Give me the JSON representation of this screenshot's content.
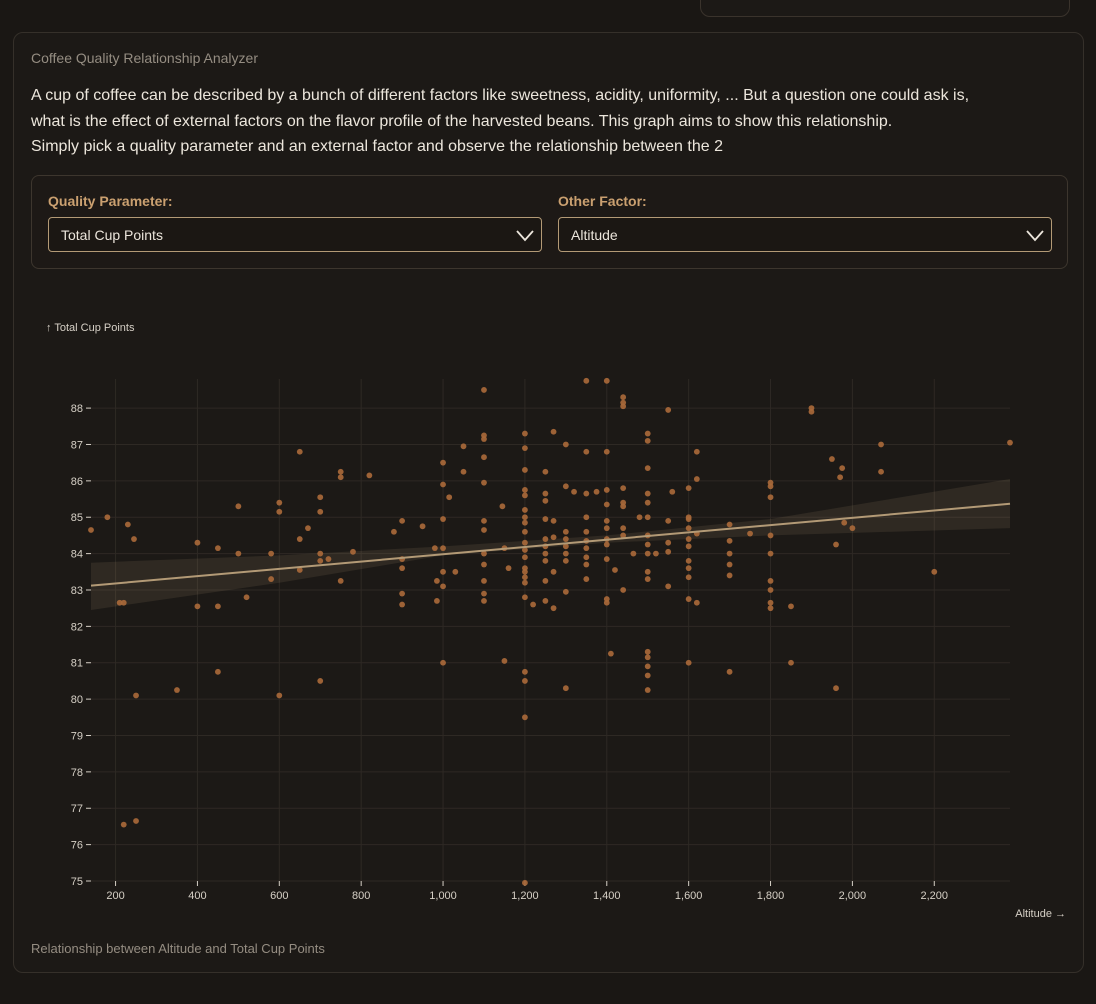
{
  "card": {
    "title": "Coffee Quality Relationship Analyzer",
    "description": [
      "A cup of coffee can be described by a bunch of different factors like sweetness, acidity, uniformity, ... But a question one could ask is,",
      "what is the effect of external factors on the flavor profile of the harvested beans. This graph aims to show this relationship.",
      "Simply pick a quality parameter and an external factor and observe the relationship between the 2"
    ],
    "caption": "Relationship between Altitude and Total Cup Points"
  },
  "controls": {
    "quality_label": "Quality Parameter:",
    "quality_value": "Total Cup Points",
    "factor_label": "Other Factor:",
    "factor_value": "Altitude"
  },
  "colors": {
    "point": "#a8683a",
    "trend": "#b39a76",
    "grid": "#2e2924",
    "axis_text": "#d6d0c6"
  },
  "chart_data": {
    "type": "scatter",
    "ylabel": "↑ Total Cup Points",
    "xlabel": "Altitude →",
    "xlim": [
      140,
      2385
    ],
    "ylim": [
      75,
      88.8
    ],
    "x_ticks": [
      200,
      400,
      600,
      800,
      1000,
      1200,
      1400,
      1600,
      1800,
      2000,
      2200
    ],
    "x_tick_labels": [
      "200",
      "400",
      "600",
      "800",
      "1,000",
      "1,200",
      "1,400",
      "1,600",
      "1,800",
      "2,000",
      "2,200"
    ],
    "y_ticks": [
      75,
      76,
      77,
      78,
      79,
      80,
      81,
      82,
      83,
      84,
      85,
      86,
      87,
      88
    ],
    "grid": true,
    "trend": {
      "x": [
        140,
        2385
      ],
      "y": [
        83.12,
        85.37
      ]
    },
    "band": {
      "x": [
        140,
        600,
        1000,
        1400,
        1800,
        2385
      ],
      "upper": [
        83.75,
        83.95,
        84.2,
        84.5,
        84.95,
        86.05
      ],
      "lower": [
        82.45,
        83.2,
        83.95,
        84.3,
        84.5,
        84.7
      ]
    },
    "points": [
      [
        140,
        84.65
      ],
      [
        180,
        85.0
      ],
      [
        210,
        82.65
      ],
      [
        220,
        82.65
      ],
      [
        230,
        84.8
      ],
      [
        245,
        84.4
      ],
      [
        250,
        80.1
      ],
      [
        350,
        80.25
      ],
      [
        400,
        84.3
      ],
      [
        400,
        82.55
      ],
      [
        450,
        84.15
      ],
      [
        450,
        82.55
      ],
      [
        450,
        80.75
      ],
      [
        500,
        85.3
      ],
      [
        500,
        84.0
      ],
      [
        520,
        82.8
      ],
      [
        580,
        84.0
      ],
      [
        580,
        83.3
      ],
      [
        600,
        85.4
      ],
      [
        600,
        85.15
      ],
      [
        600,
        80.1
      ],
      [
        650,
        86.8
      ],
      [
        650,
        84.4
      ],
      [
        650,
        83.55
      ],
      [
        670,
        84.7
      ],
      [
        700,
        85.55
      ],
      [
        700,
        85.15
      ],
      [
        700,
        84.0
      ],
      [
        700,
        83.8
      ],
      [
        700,
        80.5
      ],
      [
        720,
        83.85
      ],
      [
        750,
        86.25
      ],
      [
        750,
        86.1
      ],
      [
        750,
        83.25
      ],
      [
        780,
        84.05
      ],
      [
        820,
        86.15
      ],
      [
        880,
        84.6
      ],
      [
        900,
        84.9
      ],
      [
        900,
        83.85
      ],
      [
        900,
        83.6
      ],
      [
        900,
        82.9
      ],
      [
        900,
        82.6
      ],
      [
        950,
        84.75
      ],
      [
        980,
        84.15
      ],
      [
        985,
        83.25
      ],
      [
        985,
        82.7
      ],
      [
        1000,
        86.5
      ],
      [
        1000,
        85.9
      ],
      [
        1000,
        84.95
      ],
      [
        1000,
        84.15
      ],
      [
        1000,
        83.5
      ],
      [
        1000,
        83.1
      ],
      [
        1000,
        81.0
      ],
      [
        1015,
        85.55
      ],
      [
        1030,
        83.5
      ],
      [
        1050,
        86.95
      ],
      [
        1050,
        86.25
      ],
      [
        1100,
        88.5
      ],
      [
        1100,
        87.25
      ],
      [
        1100,
        87.15
      ],
      [
        1100,
        86.65
      ],
      [
        1100,
        85.95
      ],
      [
        1100,
        84.9
      ],
      [
        1100,
        84.65
      ],
      [
        1100,
        84.0
      ],
      [
        1100,
        83.7
      ],
      [
        1100,
        83.25
      ],
      [
        1100,
        82.9
      ],
      [
        1100,
        82.7
      ],
      [
        1145,
        85.3
      ],
      [
        1150,
        84.15
      ],
      [
        1150,
        81.05
      ],
      [
        1160,
        83.6
      ],
      [
        1200,
        87.3
      ],
      [
        1200,
        86.9
      ],
      [
        1200,
        86.3
      ],
      [
        1200,
        85.75
      ],
      [
        1200,
        85.6
      ],
      [
        1200,
        85.2
      ],
      [
        1200,
        85.0
      ],
      [
        1200,
        84.85
      ],
      [
        1200,
        84.6
      ],
      [
        1200,
        84.3
      ],
      [
        1200,
        84.1
      ],
      [
        1200,
        83.9
      ],
      [
        1200,
        83.6
      ],
      [
        1200,
        83.5
      ],
      [
        1200,
        83.35
      ],
      [
        1200,
        83.2
      ],
      [
        1200,
        82.8
      ],
      [
        1200,
        80.75
      ],
      [
        1200,
        80.5
      ],
      [
        1200,
        79.5
      ],
      [
        1200,
        74.95
      ],
      [
        1220,
        82.6
      ],
      [
        1250,
        86.25
      ],
      [
        1250,
        85.65
      ],
      [
        1250,
        85.45
      ],
      [
        1250,
        84.95
      ],
      [
        1250,
        84.4
      ],
      [
        1250,
        84.2
      ],
      [
        1250,
        84.0
      ],
      [
        1250,
        83.8
      ],
      [
        1250,
        83.25
      ],
      [
        1250,
        82.7
      ],
      [
        1270,
        87.35
      ],
      [
        1270,
        84.9
      ],
      [
        1270,
        84.45
      ],
      [
        1270,
        83.5
      ],
      [
        1270,
        82.5
      ],
      [
        1300,
        87.0
      ],
      [
        1300,
        85.85
      ],
      [
        1300,
        84.6
      ],
      [
        1300,
        84.4
      ],
      [
        1300,
        84.2
      ],
      [
        1300,
        84.0
      ],
      [
        1300,
        83.8
      ],
      [
        1300,
        82.95
      ],
      [
        1300,
        80.3
      ],
      [
        1320,
        85.7
      ],
      [
        1350,
        88.75
      ],
      [
        1350,
        86.8
      ],
      [
        1350,
        85.65
      ],
      [
        1350,
        85.0
      ],
      [
        1350,
        84.6
      ],
      [
        1350,
        84.35
      ],
      [
        1350,
        84.15
      ],
      [
        1350,
        83.9
      ],
      [
        1350,
        83.7
      ],
      [
        1350,
        83.3
      ],
      [
        1375,
        85.7
      ],
      [
        1400,
        88.75
      ],
      [
        1400,
        86.8
      ],
      [
        1400,
        85.75
      ],
      [
        1400,
        85.35
      ],
      [
        1400,
        84.9
      ],
      [
        1400,
        84.7
      ],
      [
        1400,
        84.4
      ],
      [
        1400,
        84.25
      ],
      [
        1400,
        83.85
      ],
      [
        1400,
        82.75
      ],
      [
        1400,
        82.65
      ],
      [
        1410,
        81.25
      ],
      [
        1420,
        83.55
      ],
      [
        1440,
        88.3
      ],
      [
        1440,
        88.15
      ],
      [
        1440,
        88.05
      ],
      [
        1440,
        85.8
      ],
      [
        1440,
        85.4
      ],
      [
        1440,
        85.3
      ],
      [
        1440,
        84.7
      ],
      [
        1440,
        84.5
      ],
      [
        1440,
        83.0
      ],
      [
        1465,
        84.0
      ],
      [
        1480,
        85.0
      ],
      [
        1500,
        87.3
      ],
      [
        1500,
        87.1
      ],
      [
        1500,
        86.35
      ],
      [
        1500,
        85.65
      ],
      [
        1500,
        85.4
      ],
      [
        1500,
        85.0
      ],
      [
        1500,
        84.5
      ],
      [
        1500,
        84.25
      ],
      [
        1500,
        84.0
      ],
      [
        1500,
        83.5
      ],
      [
        1500,
        83.3
      ],
      [
        1500,
        81.3
      ],
      [
        1500,
        81.15
      ],
      [
        1500,
        80.9
      ],
      [
        1500,
        80.65
      ],
      [
        1500,
        80.25
      ],
      [
        1520,
        84.0
      ],
      [
        1550,
        87.95
      ],
      [
        1550,
        84.9
      ],
      [
        1550,
        84.3
      ],
      [
        1550,
        84.05
      ],
      [
        1550,
        83.1
      ],
      [
        1560,
        85.7
      ],
      [
        1600,
        85.8
      ],
      [
        1600,
        85.0
      ],
      [
        1600,
        84.95
      ],
      [
        1600,
        84.7
      ],
      [
        1600,
        84.4
      ],
      [
        1600,
        84.2
      ],
      [
        1600,
        83.8
      ],
      [
        1600,
        83.6
      ],
      [
        1600,
        83.35
      ],
      [
        1600,
        82.75
      ],
      [
        1600,
        81.0
      ],
      [
        1620,
        86.8
      ],
      [
        1620,
        86.05
      ],
      [
        1620,
        84.55
      ],
      [
        1620,
        82.65
      ],
      [
        1700,
        84.8
      ],
      [
        1700,
        84.35
      ],
      [
        1700,
        84.0
      ],
      [
        1700,
        83.7
      ],
      [
        1700,
        83.4
      ],
      [
        1700,
        80.75
      ],
      [
        1750,
        84.55
      ],
      [
        1800,
        85.95
      ],
      [
        1800,
        85.85
      ],
      [
        1800,
        85.55
      ],
      [
        1800,
        84.5
      ],
      [
        1800,
        84.0
      ],
      [
        1800,
        83.25
      ],
      [
        1800,
        83.0
      ],
      [
        1800,
        82.65
      ],
      [
        1800,
        82.5
      ],
      [
        1850,
        82.55
      ],
      [
        1850,
        81.0
      ],
      [
        1900,
        88.0
      ],
      [
        1900,
        87.9
      ],
      [
        1950,
        86.6
      ],
      [
        1960,
        84.25
      ],
      [
        1960,
        80.3
      ],
      [
        1970,
        86.1
      ],
      [
        1975,
        86.35
      ],
      [
        1980,
        84.85
      ],
      [
        2000,
        84.7
      ],
      [
        2070,
        87.0
      ],
      [
        2070,
        86.25
      ],
      [
        2200,
        83.5
      ],
      [
        2385,
        87.05
      ],
      [
        220,
        76.55
      ],
      [
        250,
        76.65
      ]
    ]
  }
}
